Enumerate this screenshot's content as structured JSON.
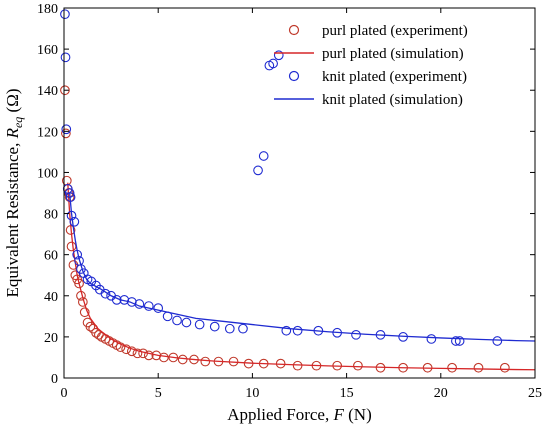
{
  "chart_data": {
    "type": "scatter",
    "xlabel": "Applied Force, F (N)",
    "xlabel_prefix": "Applied Force, ",
    "xlabel_var": "F",
    "xlabel_suffix": " (N)",
    "ylabel_prefix": "Equivalent Resistance, ",
    "ylabel_var": "R",
    "ylabel_sub": "eq",
    "ylabel_suffix": " (Ω)",
    "xlim": [
      0,
      25
    ],
    "ylim": [
      0,
      180
    ],
    "xticks": [
      0,
      5,
      10,
      15,
      20,
      25
    ],
    "yticks": [
      0,
      20,
      40,
      60,
      80,
      100,
      120,
      140,
      160,
      180
    ],
    "grid": false,
    "legend_position": "top-right",
    "series": [
      {
        "name": "purl plated (experiment)",
        "kind": "markers",
        "color": "#c0392b",
        "x": [
          0.05,
          0.1,
          0.15,
          0.2,
          0.25,
          0.3,
          0.35,
          0.4,
          0.5,
          0.6,
          0.7,
          0.8,
          0.9,
          1.0,
          1.1,
          1.25,
          1.4,
          1.55,
          1.7,
          1.85,
          2.0,
          2.2,
          2.4,
          2.6,
          2.8,
          3.0,
          3.3,
          3.6,
          3.9,
          4.2,
          4.5,
          4.9,
          5.3,
          5.8,
          6.3,
          6.9,
          7.5,
          8.2,
          9.0,
          9.8,
          10.6,
          11.5,
          12.4,
          13.4,
          14.5,
          15.6,
          16.8,
          18.0,
          19.3,
          20.6,
          22.0,
          23.4
        ],
        "y": [
          140,
          119,
          96,
          92,
          90,
          88,
          72,
          64,
          55,
          50,
          48,
          46,
          40,
          37,
          32,
          27,
          25,
          24,
          22,
          21,
          20,
          19,
          18,
          17,
          16,
          15,
          14,
          13,
          12,
          12,
          11,
          11,
          10,
          10,
          9,
          9,
          8,
          8,
          8,
          7,
          7,
          7,
          6,
          6,
          6,
          6,
          5,
          5,
          5,
          5,
          5,
          5
        ]
      },
      {
        "name": "purl plated (simulation)",
        "kind": "line",
        "color": "#d62728",
        "x": [
          0.2,
          0.3,
          0.4,
          0.5,
          0.6,
          0.7,
          0.8,
          1.0,
          1.2,
          1.4,
          1.6,
          1.8,
          2.0,
          2.5,
          3.0,
          3.5,
          4.0,
          5.0,
          6.0,
          7.0,
          8.0,
          10.0,
          12.0,
          14.0,
          16.0,
          18.0,
          20.0,
          22.0,
          24.0,
          25.0
        ],
        "y": [
          95,
          80,
          70,
          62,
          56,
          50,
          46,
          39,
          33,
          29,
          26.5,
          24,
          22.5,
          19,
          16.5,
          14.5,
          13,
          11,
          9.8,
          8.9,
          8.2,
          7.2,
          6.5,
          5.9,
          5.4,
          5.0,
          4.7,
          4.4,
          4.1,
          4.0
        ]
      },
      {
        "name": "knit plated (experiment)",
        "kind": "markers",
        "color": "#1f2bd1",
        "x": [
          0.05,
          0.08,
          0.12,
          0.2,
          0.3,
          0.35,
          0.4,
          0.55,
          0.7,
          0.8,
          0.9,
          1.05,
          1.25,
          1.45,
          1.7,
          1.9,
          2.2,
          2.5,
          2.8,
          3.2,
          3.6,
          4.0,
          4.5,
          5.0,
          5.5,
          6.0,
          6.5,
          7.2,
          8.0,
          8.8,
          9.5,
          10.3,
          10.6,
          10.9,
          11.1,
          11.4,
          11.8,
          12.4,
          13.5,
          14.5,
          15.5,
          16.8,
          18.0,
          19.5,
          20.8,
          21.0,
          23.0
        ],
        "y": [
          177,
          156,
          121,
          92,
          90,
          88,
          79,
          76,
          60,
          57,
          53,
          51,
          48,
          47,
          45,
          43,
          41,
          40,
          38,
          38,
          37,
          36,
          35,
          34,
          30,
          28,
          27,
          26,
          25,
          24,
          24,
          101,
          108,
          152,
          153,
          157,
          23,
          23,
          23,
          22,
          21,
          21,
          20,
          19,
          18,
          18,
          18
        ]
      },
      {
        "name": "knit plated (simulation)",
        "kind": "line",
        "color": "#1f2bd1",
        "x": [
          0.3,
          0.4,
          0.5,
          0.6,
          0.7,
          0.8,
          1.0,
          1.2,
          1.4,
          1.6,
          1.8,
          2.0,
          2.5,
          3.0,
          3.5,
          4.0,
          5.0,
          6.0,
          7.0,
          8.0,
          10.0,
          12.0,
          14.0,
          16.0,
          18.0,
          20.0,
          22.0,
          24.0,
          25.0
        ],
        "y": [
          90,
          80,
          73,
          67,
          62,
          58,
          52,
          48,
          46,
          45,
          44,
          43,
          40,
          38,
          37,
          35,
          33,
          31,
          29,
          28,
          26,
          24,
          22.5,
          21.3,
          20.3,
          19.5,
          18.8,
          18.2,
          18.0
        ]
      }
    ]
  }
}
